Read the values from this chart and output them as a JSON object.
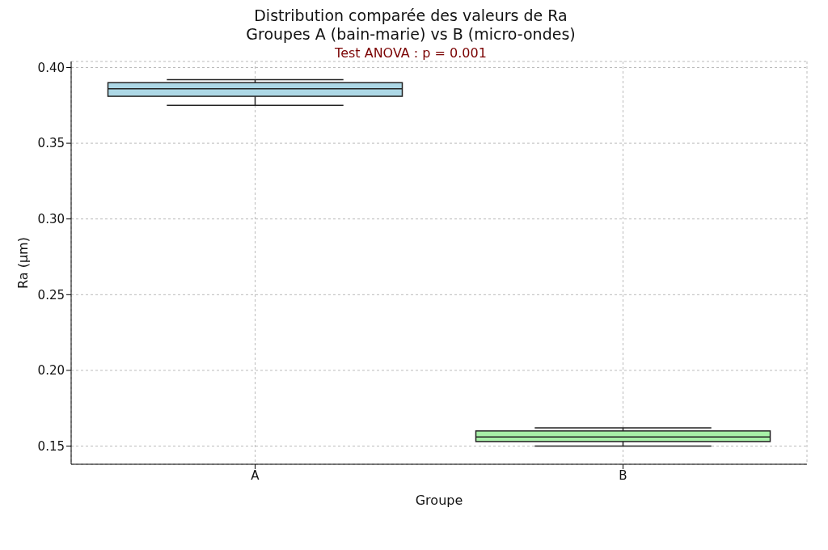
{
  "chart_data": {
    "type": "box",
    "title": "Distribution comparée des valeurs de Ra\nGroupes A (bain-marie) vs B (micro-ondes)",
    "xlabel": "Groupe",
    "ylabel": "Ra (µm)",
    "annotations": [
      "Test ANOVA : p = 0.001"
    ],
    "categories": [
      "A",
      "B"
    ],
    "boxes": [
      {
        "low": 0.375,
        "q1": 0.381,
        "median": 0.386,
        "q3": 0.39,
        "high": 0.392
      },
      {
        "low": 0.15,
        "q1": 0.153,
        "median": 0.156,
        "q3": 0.16,
        "high": 0.162
      }
    ],
    "colors": [
      "#add8e6",
      "#a8f0a8"
    ],
    "ylim": [
      0.138,
      0.404
    ],
    "yticks": [
      0.15,
      {
        "value": 0.2,
        "label": "0.20"
      },
      0.25,
      {
        "value": 0.3,
        "label": "0.30"
      },
      0.35,
      {
        "value": 0.4,
        "label": "0.40"
      }
    ],
    "grid": true
  }
}
